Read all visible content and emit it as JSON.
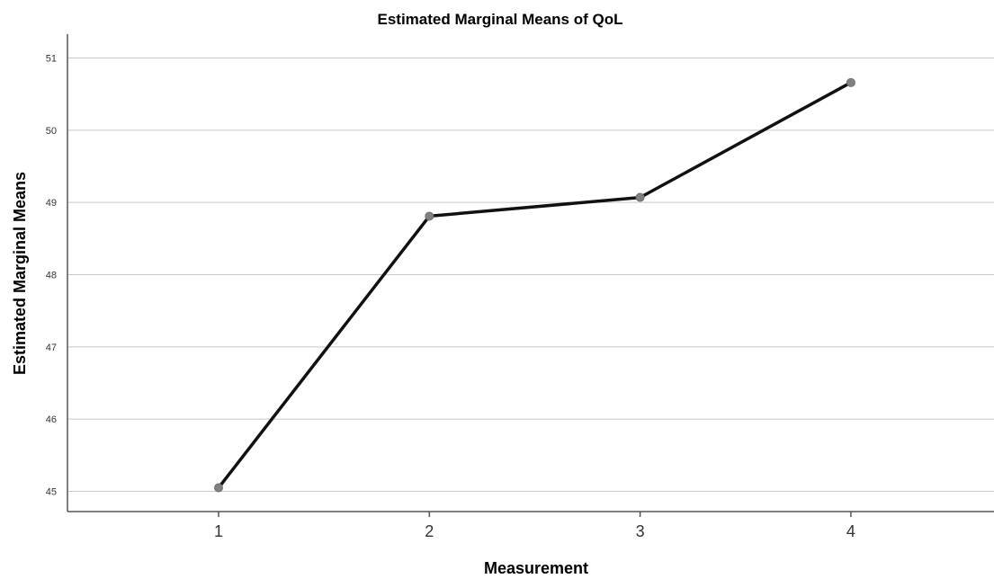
{
  "chart_data": {
    "type": "line",
    "title": "Estimated Marginal Means of QoL",
    "xlabel": "Measurement",
    "ylabel": "Estimated Marginal Means",
    "categories": [
      "1",
      "2",
      "3",
      "4"
    ],
    "series": [
      {
        "values": [
          45.05,
          48.81,
          49.07,
          50.66
        ]
      }
    ],
    "yticks": [
      "45",
      "46",
      "47",
      "48",
      "49",
      "50",
      "51"
    ],
    "ylim": [
      44.72,
      51.33
    ],
    "grid": true,
    "legend": "none",
    "line_color": "#111111",
    "marker_color": "#808080",
    "grid_color": "#c8c8c8"
  }
}
